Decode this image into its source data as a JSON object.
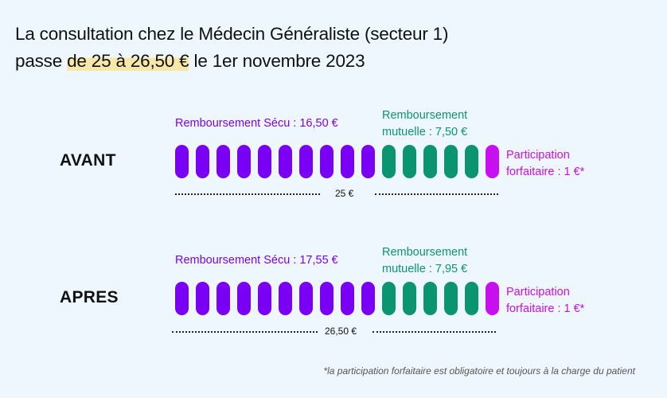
{
  "title": {
    "line1": "La consultation chez le Médecin Généraliste (secteur 1)",
    "line2_prefix": "passe ",
    "line2_highlight": "de 25 à 26,50 €",
    "line2_suffix": " le 1er novembre 2023",
    "highlight_color": "#f8e8a8"
  },
  "colors": {
    "secu": "#7a00f5",
    "mutuelle": "#0a9470",
    "participation": "#c80ff0"
  },
  "rows": {
    "avant": {
      "label": "AVANT",
      "secu_label": "Remboursement Sécu : 16,50 €",
      "mutuelle_label_1": "Remboursement",
      "mutuelle_label_2": "mutuelle : 7,50 €",
      "participation_label_1": "Participation",
      "participation_label_2": "forfaitaire : 1 €*",
      "total": "25 €"
    },
    "apres": {
      "label": "APRES",
      "secu_label": "Remboursement Sécu : 17,55 €",
      "mutuelle_label_1": "Remboursement",
      "mutuelle_label_2": "mutuelle : 7,95 €",
      "participation_label_1": "Participation",
      "participation_label_2": "forfaitaire : 1 €*",
      "total": "26,50 €"
    }
  },
  "footnote": "*la participation forfaitaire est obligatoire et toujours à la charge du patient",
  "chart_data": {
    "type": "bar",
    "title": "La consultation chez le Médecin Généraliste (secteur 1) passe de 25 à 26,50 € le 1er novembre 2023",
    "categories": [
      "AVANT",
      "APRES"
    ],
    "series": [
      {
        "name": "Remboursement Sécu",
        "values": [
          16.5,
          17.55
        ],
        "color": "#7a00f5",
        "pills": 10
      },
      {
        "name": "Remboursement mutuelle",
        "values": [
          7.5,
          7.95
        ],
        "color": "#0a9470",
        "pills": 5
      },
      {
        "name": "Participation forfaitaire",
        "values": [
          1,
          1
        ],
        "color": "#c80ff0",
        "pills": 1
      }
    ],
    "totals": [
      25,
      26.5
    ],
    "unit": "€"
  }
}
